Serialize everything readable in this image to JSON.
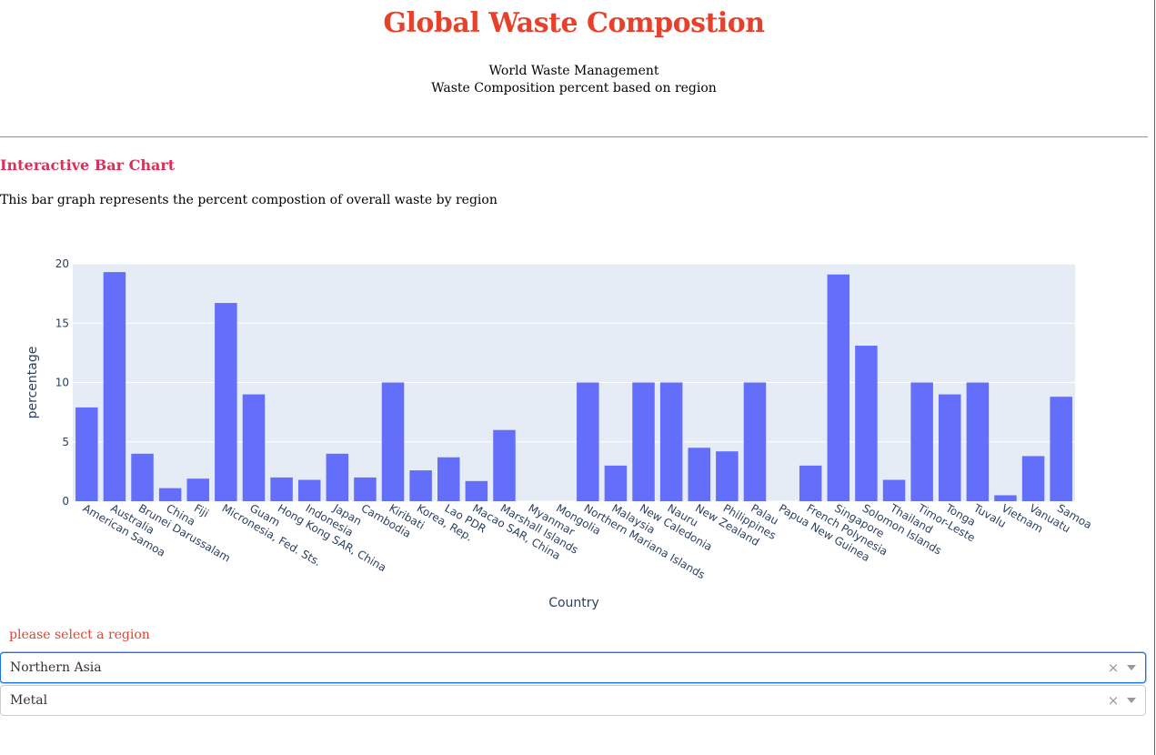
{
  "header": {
    "title": "Global Waste Compostion",
    "subtitle1": "World Waste Management",
    "subtitle2": "Waste Composition percent based on region"
  },
  "section": {
    "title": "Interactive Bar Chart",
    "description": "This bar graph represents the percent compostion of overall waste by region"
  },
  "chart_data": {
    "type": "bar",
    "xlabel": "Country",
    "ylabel": "percentage",
    "ylim": [
      0,
      20
    ],
    "yticks": [
      0,
      5,
      10,
      15,
      20
    ],
    "grid": true,
    "bar_color": "#636efa",
    "plot_bg": "#e5ecf6",
    "categories": [
      "American Samoa",
      "Australia",
      "Brunei Darussalam",
      "China",
      "Fiji",
      "Micronesia, Fed. Sts.",
      "Guam",
      "Hong Kong SAR, China",
      "Indonesia",
      "Japan",
      "Cambodia",
      "Kiribati",
      "Korea, Rep.",
      "Lao PDR",
      "Macao SAR, China",
      "Marshall Islands",
      "Myanmar",
      "Mongolia",
      "Northern Mariana Islands",
      "Malaysia",
      "New Caledonia",
      "Nauru",
      "New Zealand",
      "Philippines",
      "Palau",
      "Papua New Guinea",
      "French Polynesia",
      "Singapore",
      "Solomon Islands",
      "Thailand",
      "Timor-Leste",
      "Tonga",
      "Tuvalu",
      "Vietnam",
      "Vanuatu",
      "Samoa"
    ],
    "values": [
      7.9,
      19.3,
      4.0,
      1.1,
      1.9,
      16.7,
      9.0,
      2.0,
      1.8,
      4.0,
      2.0,
      10.0,
      2.6,
      3.7,
      1.7,
      6.0,
      0,
      0,
      10.0,
      3.0,
      10.0,
      10.0,
      4.5,
      4.2,
      10.0,
      0,
      3.0,
      19.1,
      13.1,
      1.8,
      10.0,
      9.0,
      10.0,
      0.5,
      3.8,
      8.8
    ]
  },
  "controls": {
    "label": "please select a region",
    "region": "Northern Asia",
    "material": "Metal",
    "clear_symbol": "×"
  }
}
